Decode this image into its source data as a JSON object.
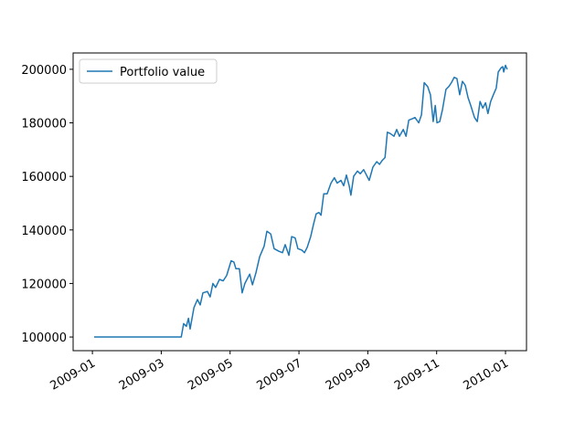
{
  "chart_data": {
    "type": "line",
    "x": [
      1.05,
      3.58,
      3.65,
      3.73,
      3.79,
      3.84,
      3.95,
      4.05,
      4.13,
      4.21,
      4.34,
      4.42,
      4.5,
      4.58,
      4.69,
      4.8,
      4.9,
      5.03,
      5.11,
      5.17,
      5.27,
      5.35,
      5.43,
      5.57,
      5.65,
      5.75,
      5.86,
      5.99,
      6.07,
      6.18,
      6.28,
      6.42,
      6.52,
      6.6,
      6.71,
      6.79,
      6.89,
      6.97,
      7.08,
      7.16,
      7.24,
      7.34,
      7.42,
      7.5,
      7.58,
      7.64,
      7.72,
      7.82,
      7.93,
      8.03,
      8.11,
      8.22,
      8.3,
      8.38,
      8.46,
      8.51,
      8.59,
      8.7,
      8.78,
      8.88,
      8.96,
      9.04,
      9.15,
      9.26,
      9.34,
      9.42,
      9.5,
      9.57,
      9.65,
      9.76,
      9.84,
      9.92,
      10.03,
      10.11,
      10.19,
      10.29,
      10.37,
      10.48,
      10.56,
      10.64,
      10.74,
      10.82,
      10.9,
      10.96,
      11.01,
      11.09,
      11.17,
      11.27,
      11.35,
      11.43,
      11.51,
      11.59,
      11.67,
      11.75,
      11.83,
      11.91,
      11.99,
      12.1,
      12.18,
      12.26,
      12.34,
      12.42,
      12.49,
      12.57,
      12.65,
      12.73,
      12.79,
      12.87,
      12.92,
      12.95,
      13.0,
      13.05
    ],
    "series": [
      {
        "name": "Portfolio value",
        "color": "#1f77b4",
        "values": [
          100000,
          100000,
          105000,
          104000,
          107000,
          103000,
          111000,
          114000,
          112000,
          116500,
          117000,
          115000,
          120000,
          118500,
          121500,
          121000,
          123000,
          128500,
          128000,
          125500,
          125500,
          116500,
          120000,
          123500,
          119500,
          124000,
          130000,
          134000,
          139500,
          138500,
          133000,
          132000,
          131500,
          134500,
          130500,
          137500,
          137000,
          133000,
          132500,
          131500,
          133500,
          137500,
          142000,
          146000,
          146500,
          145500,
          153500,
          153500,
          157500,
          159500,
          157500,
          158500,
          156500,
          160500,
          156500,
          153000,
          160000,
          162000,
          161000,
          162500,
          160500,
          158500,
          163500,
          165500,
          164500,
          166000,
          167000,
          176500,
          176000,
          175000,
          177500,
          175000,
          177500,
          175000,
          181000,
          181500,
          182000,
          180000,
          183000,
          195000,
          193500,
          190500,
          180500,
          186500,
          180000,
          180500,
          185000,
          192500,
          193500,
          195000,
          197000,
          196500,
          190500,
          195500,
          194000,
          189500,
          186500,
          182000,
          180500,
          188000,
          185500,
          187500,
          183500,
          188000,
          190500,
          193000,
          199000,
          200500,
          201000,
          199000,
          201500,
          200000
        ]
      }
    ],
    "xlim": [
      0.44,
      13.61
    ],
    "xticks": [
      {
        "value": 1,
        "label": "2009-01"
      },
      {
        "value": 3,
        "label": "2009-03"
      },
      {
        "value": 5,
        "label": "2009-05"
      },
      {
        "value": 7,
        "label": "2009-07"
      },
      {
        "value": 9,
        "label": "2009-09"
      },
      {
        "value": 11,
        "label": "2009-11"
      },
      {
        "value": 13,
        "label": "2010-01"
      }
    ],
    "ylim": [
      94900,
      206100
    ],
    "yticks": [
      100000,
      120000,
      140000,
      160000,
      180000,
      200000
    ],
    "grid": false,
    "legend": "upper-left"
  }
}
